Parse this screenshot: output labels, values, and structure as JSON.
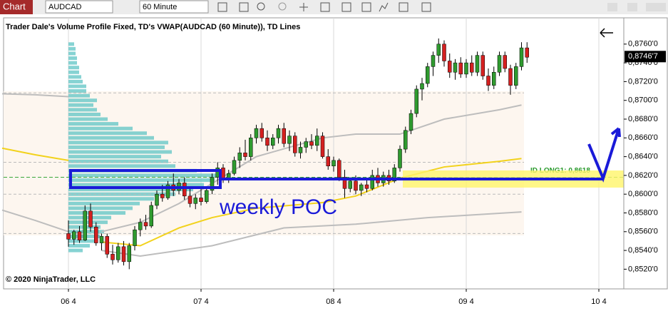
{
  "toolbar": {
    "title": "Chart",
    "instrument": "AUDCAD",
    "interval": "60 Minute"
  },
  "chart_data": {
    "type": "candlestick",
    "title": "Trader Dale's Volume Profile Fixed, TD's VWAP(AUDCAD (60 Minute)), TD Lines",
    "copyright": "© 2020 NinjaTrader, LLC",
    "annotation": "weekly POC",
    "up_color": "#2f9a2f",
    "down_color": "#d42020",
    "x": [
      0,
      1,
      2,
      3,
      4,
      5,
      6,
      7,
      8,
      9,
      10,
      11,
      12,
      13,
      14,
      15,
      16,
      17,
      18,
      19,
      20,
      21,
      22,
      23,
      24,
      25,
      26,
      27,
      28,
      29,
      30,
      31,
      32,
      33,
      34,
      35,
      36,
      37,
      38,
      39,
      40,
      41,
      42,
      43,
      44,
      45,
      46,
      47,
      48,
      49,
      50,
      51,
      52,
      53,
      54,
      55,
      56,
      57,
      58,
      59,
      60,
      61,
      62,
      63,
      64,
      65,
      66,
      67,
      68,
      69,
      70,
      71,
      72,
      73,
      74,
      75,
      76,
      77,
      78,
      79,
      80,
      81,
      82,
      83
    ],
    "open": [
      0.8558,
      0.8552,
      0.856,
      0.8551,
      0.8582,
      0.8565,
      0.8548,
      0.8555,
      0.8536,
      0.853,
      0.8544,
      0.8528,
      0.8545,
      0.8562,
      0.857,
      0.8566,
      0.8588,
      0.86,
      0.8596,
      0.861,
      0.8604,
      0.8612,
      0.8598,
      0.859,
      0.8596,
      0.8592,
      0.8604,
      0.8618,
      0.8628,
      0.8616,
      0.8622,
      0.8636,
      0.8644,
      0.864,
      0.866,
      0.867,
      0.866,
      0.8652,
      0.866,
      0.867,
      0.8654,
      0.8662,
      0.8644,
      0.865,
      0.8656,
      0.8652,
      0.8662,
      0.864,
      0.863,
      0.8636,
      0.8618,
      0.8606,
      0.8614,
      0.8604,
      0.861,
      0.8606,
      0.862,
      0.8612,
      0.862,
      0.8614,
      0.8628,
      0.8648,
      0.8668,
      0.8686,
      0.8712,
      0.8718,
      0.8736,
      0.8748,
      0.876,
      0.8742,
      0.873,
      0.874,
      0.8728,
      0.874,
      0.873,
      0.8748,
      0.8726,
      0.8716,
      0.873,
      0.8748,
      0.8734,
      0.8716,
      0.8736,
      0.8756
    ],
    "high": [
      0.8572,
      0.8562,
      0.8566,
      0.8588,
      0.859,
      0.857,
      0.8558,
      0.8558,
      0.8546,
      0.8548,
      0.855,
      0.8548,
      0.8566,
      0.8574,
      0.8578,
      0.8592,
      0.8604,
      0.861,
      0.8614,
      0.8622,
      0.8616,
      0.8618,
      0.8606,
      0.86,
      0.8606,
      0.8608,
      0.8622,
      0.8634,
      0.8632,
      0.8626,
      0.864,
      0.865,
      0.8658,
      0.8664,
      0.8674,
      0.8676,
      0.8668,
      0.8664,
      0.8674,
      0.8676,
      0.8668,
      0.8666,
      0.8656,
      0.866,
      0.8664,
      0.867,
      0.8666,
      0.8648,
      0.864,
      0.8638,
      0.8626,
      0.8618,
      0.862,
      0.8612,
      0.8616,
      0.8626,
      0.8628,
      0.8624,
      0.8626,
      0.8632,
      0.8652,
      0.8672,
      0.869,
      0.8716,
      0.8724,
      0.874,
      0.8752,
      0.8766,
      0.8764,
      0.875,
      0.8744,
      0.8746,
      0.8744,
      0.8748,
      0.8752,
      0.8752,
      0.8734,
      0.8736,
      0.8752,
      0.8752,
      0.8738,
      0.874,
      0.8762,
      0.8762
    ],
    "low": [
      0.8544,
      0.8546,
      0.8548,
      0.855,
      0.856,
      0.8545,
      0.854,
      0.8532,
      0.8525,
      0.8527,
      0.8524,
      0.852,
      0.854,
      0.8555,
      0.8562,
      0.8564,
      0.8584,
      0.8592,
      0.8594,
      0.8598,
      0.86,
      0.8594,
      0.8586,
      0.8584,
      0.8588,
      0.859,
      0.86,
      0.861,
      0.8612,
      0.8612,
      0.862,
      0.8628,
      0.8636,
      0.8636,
      0.8654,
      0.8656,
      0.8646,
      0.8648,
      0.8654,
      0.865,
      0.8646,
      0.864,
      0.8638,
      0.8644,
      0.8648,
      0.8646,
      0.8638,
      0.8626,
      0.8624,
      0.8614,
      0.8596,
      0.8602,
      0.86,
      0.8598,
      0.8602,
      0.8604,
      0.8608,
      0.8608,
      0.861,
      0.8612,
      0.8624,
      0.8644,
      0.8664,
      0.8682,
      0.87,
      0.8714,
      0.8726,
      0.874,
      0.8736,
      0.8724,
      0.8722,
      0.8724,
      0.8724,
      0.8726,
      0.8726,
      0.8722,
      0.871,
      0.8712,
      0.8726,
      0.873,
      0.8706,
      0.8712,
      0.8732,
      0.874
    ],
    "close": [
      0.8552,
      0.856,
      0.8551,
      0.8582,
      0.8565,
      0.8548,
      0.8555,
      0.8536,
      0.853,
      0.8544,
      0.8528,
      0.8545,
      0.8562,
      0.857,
      0.8566,
      0.8588,
      0.86,
      0.8596,
      0.861,
      0.8604,
      0.8612,
      0.8598,
      0.859,
      0.8596,
      0.8592,
      0.8604,
      0.8618,
      0.8628,
      0.8616,
      0.8622,
      0.8636,
      0.8644,
      0.864,
      0.866,
      0.867,
      0.866,
      0.8652,
      0.866,
      0.867,
      0.8654,
      0.8662,
      0.8644,
      0.865,
      0.8656,
      0.8652,
      0.8662,
      0.864,
      0.863,
      0.8636,
      0.8618,
      0.8606,
      0.8614,
      0.8604,
      0.861,
      0.8606,
      0.862,
      0.8612,
      0.862,
      0.8614,
      0.8628,
      0.8648,
      0.8668,
      0.8686,
      0.8712,
      0.8718,
      0.8736,
      0.8748,
      0.876,
      0.8742,
      0.873,
      0.874,
      0.8728,
      0.874,
      0.873,
      0.8748,
      0.8726,
      0.8716,
      0.873,
      0.8748,
      0.8734,
      0.8716,
      0.8736,
      0.8756,
      0.8746
    ],
    "profile_color": "#5ec4c4",
    "profile_prices": [
      0.854,
      0.8545,
      0.855,
      0.8555,
      0.856,
      0.8565,
      0.857,
      0.8575,
      0.858,
      0.8585,
      0.859,
      0.8595,
      0.86,
      0.8605,
      0.861,
      0.8615,
      0.862,
      0.8625,
      0.863,
      0.8635,
      0.864,
      0.8645,
      0.865,
      0.8655,
      0.866,
      0.8665,
      0.867,
      0.8675,
      0.868,
      0.8685,
      0.869,
      0.8695,
      0.87,
      0.8705,
      0.871,
      0.8715,
      0.872,
      0.8725,
      0.873,
      0.8735,
      0.874,
      0.8745,
      0.875,
      0.8755,
      0.876
    ],
    "profile_volumes": [
      20,
      30,
      40,
      45,
      50,
      45,
      55,
      60,
      80,
      90,
      100,
      120,
      150,
      175,
      190,
      205,
      210,
      180,
      150,
      140,
      130,
      145,
      135,
      140,
      120,
      110,
      90,
      70,
      55,
      45,
      40,
      35,
      40,
      30,
      25,
      25,
      20,
      18,
      15,
      15,
      12,
      12,
      10,
      10,
      8
    ],
    "lines": [
      {
        "color": "#f2d21c",
        "x": [
          -12,
          -6,
          0,
          null,
          6,
          13,
          20,
          26,
          34,
          46,
          52,
          60,
          68,
          78,
          82
        ],
        "values": [
          0.8649,
          0.8642,
          0.8636,
          null,
          0.8549,
          0.8545,
          0.8564,
          0.8575,
          0.8585,
          0.8591,
          0.8598,
          0.8617,
          0.8629,
          0.8635,
          0.8638
        ]
      },
      {
        "color": "#bdbdbd",
        "x": [
          -12,
          -6,
          0,
          null,
          6,
          13,
          20,
          27,
          34,
          46,
          52,
          60,
          68,
          78,
          82
        ],
        "values": [
          0.8707,
          0.8706,
          0.8704,
          null,
          0.856,
          0.857,
          0.859,
          0.8615,
          0.864,
          0.866,
          0.8664,
          0.8664,
          0.868,
          0.869,
          0.8695
        ]
      },
      {
        "color": "#bdbdbd",
        "x": [
          -12,
          -6,
          0,
          null,
          6,
          13,
          26,
          39,
          52,
          65,
          82
        ],
        "values": [
          0.8583,
          0.8572,
          0.856,
          null,
          0.854,
          0.8534,
          0.8545,
          0.8564,
          0.8568,
          0.8575,
          0.8581
        ]
      }
    ],
    "levels": [
      0.8708,
      0.8634,
      0.86,
      0.8558
    ],
    "id_long": {
      "value": 0.8618,
      "label": "ID LONG1: 0,8618"
    },
    "last_price": {
      "value": 0.87467,
      "label": "0,8746'7"
    },
    "xlim": [
      -11.742,
      100.516
    ],
    "xticks": [
      {
        "value": 0,
        "label": "06 4"
      },
      {
        "value": 24,
        "label": "07 4"
      },
      {
        "value": 48,
        "label": "08 4"
      },
      {
        "value": 72,
        "label": "09 4"
      },
      {
        "value": 96,
        "label": "10 4"
      }
    ],
    "ylim": [
      0.8499,
      0.8788
    ],
    "yticks": [
      {
        "value": 0.852,
        "label": "0,8520'0"
      },
      {
        "value": 0.854,
        "label": "0,8540'0"
      },
      {
        "value": 0.856,
        "label": "0,8560'0"
      },
      {
        "value": 0.858,
        "label": "0,8580'0"
      },
      {
        "value": 0.86,
        "label": "0,8600'0"
      },
      {
        "value": 0.862,
        "label": "0,8620'0"
      },
      {
        "value": 0.864,
        "label": "0,8640'0"
      },
      {
        "value": 0.866,
        "label": "0,8660'0"
      },
      {
        "value": 0.868,
        "label": "0,8680'0"
      },
      {
        "value": 0.87,
        "label": "0,8700'0"
      },
      {
        "value": 0.872,
        "label": "0,8720'0"
      },
      {
        "value": 0.874,
        "label": "0,8740'0"
      },
      {
        "value": 0.876,
        "label": "0,8760'0"
      }
    ],
    "grid": true
  }
}
